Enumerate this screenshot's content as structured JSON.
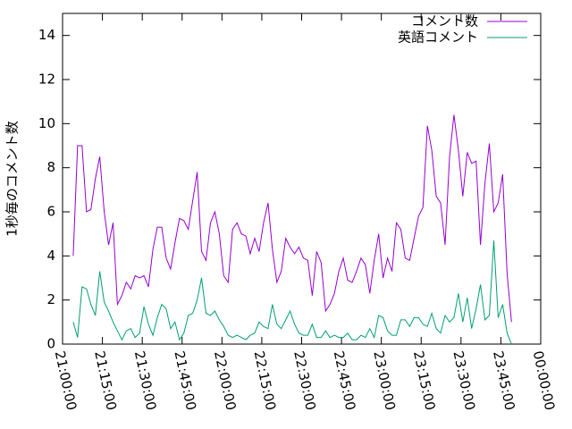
{
  "chart_data": {
    "type": "line",
    "ylabel": "1秒毎のコメント数",
    "xlim": [
      "21:00:00",
      "00:00:00"
    ],
    "xticks": [
      "21:00:00",
      "21:15:00",
      "21:30:00",
      "21:45:00",
      "22:00:00",
      "22:15:00",
      "22:30:00",
      "22:45:00",
      "23:00:00",
      "23:15:00",
      "23:30:00",
      "23:45:00",
      "00:00:00"
    ],
    "ylim": [
      0,
      15
    ],
    "yticks": [
      0,
      2,
      4,
      6,
      8,
      10,
      12,
      14
    ],
    "legend": "top-right",
    "x": [
      "21:04:00",
      "21:05:40",
      "21:07:20",
      "21:09:00",
      "21:10:40",
      "21:12:20",
      "21:14:00",
      "21:15:40",
      "21:17:20",
      "21:19:00",
      "21:20:40",
      "21:22:20",
      "21:24:00",
      "21:25:40",
      "21:27:20",
      "21:29:00",
      "21:30:40",
      "21:32:20",
      "21:34:00",
      "21:35:40",
      "21:37:20",
      "21:39:00",
      "21:40:40",
      "21:42:20",
      "21:44:00",
      "21:45:40",
      "21:47:20",
      "21:49:00",
      "21:50:40",
      "21:52:20",
      "21:54:00",
      "21:55:40",
      "21:57:20",
      "21:59:00",
      "22:00:40",
      "22:02:20",
      "22:04:00",
      "22:05:40",
      "22:07:20",
      "22:09:00",
      "22:10:40",
      "22:12:20",
      "22:14:00",
      "22:15:40",
      "22:17:20",
      "22:19:00",
      "22:20:40",
      "22:22:20",
      "22:24:00",
      "22:25:40",
      "22:27:20",
      "22:29:00",
      "22:30:40",
      "22:32:20",
      "22:34:00",
      "22:35:40",
      "22:37:20",
      "22:39:00",
      "22:40:40",
      "22:42:20",
      "22:44:00",
      "22:45:40",
      "22:47:20",
      "22:49:00",
      "22:50:40",
      "22:52:20",
      "22:54:00",
      "22:55:40",
      "22:57:20",
      "22:59:00",
      "23:00:40",
      "23:02:20",
      "23:04:00",
      "23:05:40",
      "23:07:20",
      "23:09:00",
      "23:10:40",
      "23:12:20",
      "23:14:00",
      "23:15:40",
      "23:17:20",
      "23:19:00",
      "23:20:40",
      "23:22:20",
      "23:24:00",
      "23:25:40",
      "23:27:20",
      "23:29:00",
      "23:30:40",
      "23:32:20",
      "23:34:00",
      "23:35:40",
      "23:37:20",
      "23:39:00",
      "23:40:40",
      "23:42:20",
      "23:44:00",
      "23:45:40",
      "23:47:20",
      "23:49:00"
    ],
    "series": [
      {
        "name": "コメント数",
        "color": "#9400d3",
        "values": [
          4,
          9,
          9,
          6,
          6.1,
          7.5,
          8.5,
          6,
          4.5,
          5.5,
          1.8,
          2.2,
          2.8,
          2.5,
          3.1,
          3.0,
          3.1,
          2.6,
          4.3,
          5.3,
          5.3,
          3.9,
          3.4,
          4.6,
          5.7,
          5.6,
          5.2,
          6.5,
          7.8,
          4.2,
          3.8,
          5.5,
          6,
          5,
          3.1,
          2.8,
          5.2,
          5.5,
          5,
          4.9,
          4.1,
          4.8,
          4.2,
          5.5,
          6.4,
          4.3,
          2.8,
          3.3,
          4.8,
          4.4,
          4.1,
          4.4,
          3.9,
          3.8,
          2.2,
          4.2,
          3.7,
          1.5,
          1.8,
          2.3,
          3.3,
          3.9,
          2.9,
          2.8,
          3.3,
          3.9,
          3.6,
          2.3,
          3.8,
          5,
          3,
          3.9,
          3.3,
          5.5,
          5.2,
          3.9,
          3.8,
          4.8,
          5.8,
          6.2,
          9.9,
          8.8,
          6.7,
          6.4,
          4.5,
          8.5,
          10.4,
          8.8,
          6.7,
          8.7,
          8.2,
          8.3,
          4.5,
          7.3,
          9.1,
          6,
          6.4,
          7.7,
          3.2,
          1
        ]
      },
      {
        "name": "英語コメント",
        "color": "#009e73",
        "values": [
          1.0,
          0.3,
          2.6,
          2.5,
          1.8,
          1.3,
          3.3,
          1.9,
          1.5,
          1.0,
          0.6,
          0.2,
          0.6,
          0.7,
          0.3,
          0.5,
          1.7,
          0.9,
          0.4,
          1.2,
          1.8,
          1.6,
          0.7,
          1.0,
          0.2,
          0.5,
          1.3,
          1.4,
          2.0,
          3.0,
          1.4,
          1.3,
          1.5,
          1.1,
          0.8,
          0.4,
          0.3,
          0.4,
          0.3,
          0.2,
          0.4,
          0.5,
          1.0,
          0.8,
          0.7,
          1.8,
          0.9,
          0.7,
          1.1,
          1.5,
          0.9,
          0.5,
          0.4,
          0.4,
          0.9,
          0.3,
          0.3,
          0.6,
          0.3,
          0.4,
          0.3,
          0.3,
          0.5,
          0.2,
          0.2,
          0.4,
          0.3,
          0.7,
          0.3,
          1.3,
          1.2,
          0.6,
          0.4,
          0.4,
          1.1,
          1.1,
          0.8,
          1.2,
          1.2,
          0.9,
          0.8,
          1.4,
          0.7,
          0.5,
          1.3,
          1.0,
          1.2,
          2.3,
          1.0,
          2.1,
          0.7,
          1.6,
          2.7,
          1.1,
          1.3,
          4.7,
          1.2,
          1.8,
          0.5,
          0.0
        ]
      }
    ]
  }
}
